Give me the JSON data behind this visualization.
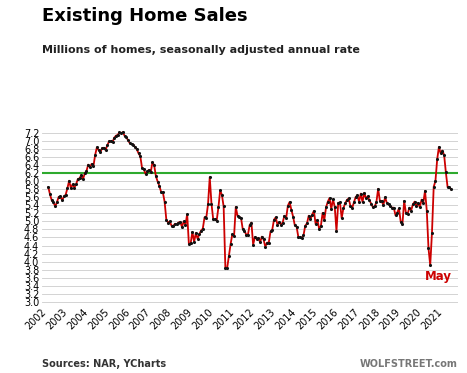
{
  "title": "Existing Home Sales",
  "subtitle": "Millions of homes, seasonally adjusted annual rate",
  "ylabel_values": [
    3.0,
    3.2,
    3.4,
    3.6,
    3.8,
    4.0,
    4.2,
    4.4,
    4.6,
    4.8,
    5.0,
    5.2,
    5.4,
    5.6,
    5.8,
    6.0,
    6.2,
    6.4,
    6.6,
    6.8,
    7.0,
    7.2
  ],
  "ylim": [
    2.9,
    7.35
  ],
  "source_left": "Sources: NAR, YCharts",
  "source_right": "WOLFSTREET.com",
  "annotation": "May",
  "annotation_color": "#cc0000",
  "hline_value": 6.2,
  "hline_color": "#2eaa2e",
  "line_color": "#cc0000",
  "dot_color": "#111111",
  "background_color": "#ffffff",
  "grid_color": "#cccccc",
  "data": [
    [
      2002.0,
      5.85
    ],
    [
      2002.083,
      5.67
    ],
    [
      2002.167,
      5.52
    ],
    [
      2002.25,
      5.47
    ],
    [
      2002.333,
      5.37
    ],
    [
      2002.417,
      5.48
    ],
    [
      2002.5,
      5.61
    ],
    [
      2002.583,
      5.62
    ],
    [
      2002.667,
      5.52
    ],
    [
      2002.75,
      5.62
    ],
    [
      2002.833,
      5.66
    ],
    [
      2002.917,
      5.82
    ],
    [
      2003.0,
      6.01
    ],
    [
      2003.083,
      5.83
    ],
    [
      2003.167,
      5.92
    ],
    [
      2003.25,
      5.84
    ],
    [
      2003.333,
      5.92
    ],
    [
      2003.417,
      6.05
    ],
    [
      2003.5,
      6.07
    ],
    [
      2003.583,
      6.15
    ],
    [
      2003.667,
      6.05
    ],
    [
      2003.75,
      6.19
    ],
    [
      2003.833,
      6.25
    ],
    [
      2003.917,
      6.41
    ],
    [
      2004.0,
      6.35
    ],
    [
      2004.083,
      6.43
    ],
    [
      2004.167,
      6.37
    ],
    [
      2004.25,
      6.65
    ],
    [
      2004.333,
      6.84
    ],
    [
      2004.417,
      6.77
    ],
    [
      2004.5,
      6.72
    ],
    [
      2004.583,
      6.82
    ],
    [
      2004.667,
      6.83
    ],
    [
      2004.75,
      6.77
    ],
    [
      2004.833,
      6.89
    ],
    [
      2004.917,
      6.99
    ],
    [
      2005.0,
      6.99
    ],
    [
      2005.083,
      6.97
    ],
    [
      2005.167,
      7.08
    ],
    [
      2005.25,
      7.13
    ],
    [
      2005.333,
      7.15
    ],
    [
      2005.417,
      7.21
    ],
    [
      2005.5,
      7.19
    ],
    [
      2005.583,
      7.22
    ],
    [
      2005.667,
      7.12
    ],
    [
      2005.75,
      7.09
    ],
    [
      2005.833,
      7.01
    ],
    [
      2005.917,
      6.94
    ],
    [
      2006.0,
      6.92
    ],
    [
      2006.083,
      6.91
    ],
    [
      2006.167,
      6.84
    ],
    [
      2006.25,
      6.79
    ],
    [
      2006.333,
      6.69
    ],
    [
      2006.417,
      6.62
    ],
    [
      2006.5,
      6.33
    ],
    [
      2006.583,
      6.3
    ],
    [
      2006.667,
      6.18
    ],
    [
      2006.75,
      6.24
    ],
    [
      2006.833,
      6.28
    ],
    [
      2006.917,
      6.22
    ],
    [
      2007.0,
      6.47
    ],
    [
      2007.083,
      6.39
    ],
    [
      2007.167,
      6.12
    ],
    [
      2007.25,
      5.99
    ],
    [
      2007.333,
      5.88
    ],
    [
      2007.417,
      5.73
    ],
    [
      2007.5,
      5.72
    ],
    [
      2007.583,
      5.49
    ],
    [
      2007.667,
      5.04
    ],
    [
      2007.75,
      4.97
    ],
    [
      2007.833,
      5.0
    ],
    [
      2007.917,
      4.89
    ],
    [
      2008.0,
      4.89
    ],
    [
      2008.083,
      4.94
    ],
    [
      2008.167,
      4.93
    ],
    [
      2008.25,
      4.97
    ],
    [
      2008.333,
      4.99
    ],
    [
      2008.417,
      4.86
    ],
    [
      2008.5,
      5.0
    ],
    [
      2008.583,
      4.91
    ],
    [
      2008.667,
      5.18
    ],
    [
      2008.75,
      4.43
    ],
    [
      2008.833,
      4.45
    ],
    [
      2008.917,
      4.74
    ],
    [
      2009.0,
      4.49
    ],
    [
      2009.083,
      4.71
    ],
    [
      2009.167,
      4.57
    ],
    [
      2009.25,
      4.68
    ],
    [
      2009.333,
      4.77
    ],
    [
      2009.417,
      4.82
    ],
    [
      2009.5,
      5.1
    ],
    [
      2009.583,
      5.09
    ],
    [
      2009.667,
      5.42
    ],
    [
      2009.75,
      6.1
    ],
    [
      2009.833,
      5.44
    ],
    [
      2009.917,
      5.05
    ],
    [
      2010.0,
      5.05
    ],
    [
      2010.083,
      5.02
    ],
    [
      2010.167,
      5.35
    ],
    [
      2010.25,
      5.77
    ],
    [
      2010.333,
      5.66
    ],
    [
      2010.417,
      5.37
    ],
    [
      2010.5,
      3.84
    ],
    [
      2010.583,
      3.83
    ],
    [
      2010.667,
      4.13
    ],
    [
      2010.75,
      4.43
    ],
    [
      2010.833,
      4.68
    ],
    [
      2010.917,
      4.63
    ],
    [
      2011.0,
      5.36
    ],
    [
      2011.083,
      5.14
    ],
    [
      2011.167,
      5.1
    ],
    [
      2011.25,
      5.09
    ],
    [
      2011.333,
      4.81
    ],
    [
      2011.417,
      4.77
    ],
    [
      2011.5,
      4.67
    ],
    [
      2011.583,
      4.67
    ],
    [
      2011.667,
      4.91
    ],
    [
      2011.75,
      4.97
    ],
    [
      2011.833,
      4.42
    ],
    [
      2011.917,
      4.61
    ],
    [
      2012.0,
      4.57
    ],
    [
      2012.083,
      4.59
    ],
    [
      2012.167,
      4.48
    ],
    [
      2012.25,
      4.62
    ],
    [
      2012.333,
      4.55
    ],
    [
      2012.417,
      4.37
    ],
    [
      2012.5,
      4.47
    ],
    [
      2012.583,
      4.47
    ],
    [
      2012.667,
      4.75
    ],
    [
      2012.75,
      4.79
    ],
    [
      2012.833,
      5.04
    ],
    [
      2012.917,
      5.1
    ],
    [
      2013.0,
      4.92
    ],
    [
      2013.083,
      4.98
    ],
    [
      2013.167,
      4.92
    ],
    [
      2013.25,
      4.97
    ],
    [
      2013.333,
      5.14
    ],
    [
      2013.417,
      5.08
    ],
    [
      2013.5,
      5.39
    ],
    [
      2013.583,
      5.48
    ],
    [
      2013.667,
      5.29
    ],
    [
      2013.75,
      5.12
    ],
    [
      2013.833,
      4.9
    ],
    [
      2013.917,
      4.87
    ],
    [
      2014.0,
      4.62
    ],
    [
      2014.083,
      4.6
    ],
    [
      2014.167,
      4.59
    ],
    [
      2014.25,
      4.65
    ],
    [
      2014.333,
      4.89
    ],
    [
      2014.417,
      4.95
    ],
    [
      2014.5,
      5.14
    ],
    [
      2014.583,
      5.05
    ],
    [
      2014.667,
      5.17
    ],
    [
      2014.75,
      5.26
    ],
    [
      2014.833,
      4.93
    ],
    [
      2014.917,
      5.04
    ],
    [
      2015.0,
      4.82
    ],
    [
      2015.083,
      4.88
    ],
    [
      2015.167,
      5.21
    ],
    [
      2015.25,
      5.04
    ],
    [
      2015.333,
      5.35
    ],
    [
      2015.417,
      5.49
    ],
    [
      2015.5,
      5.58
    ],
    [
      2015.583,
      5.31
    ],
    [
      2015.667,
      5.55
    ],
    [
      2015.75,
      5.36
    ],
    [
      2015.833,
      4.76
    ],
    [
      2015.917,
      5.46
    ],
    [
      2016.0,
      5.47
    ],
    [
      2016.083,
      5.08
    ],
    [
      2016.167,
      5.33
    ],
    [
      2016.25,
      5.45
    ],
    [
      2016.333,
      5.53
    ],
    [
      2016.417,
      5.57
    ],
    [
      2016.5,
      5.39
    ],
    [
      2016.583,
      5.33
    ],
    [
      2016.667,
      5.47
    ],
    [
      2016.75,
      5.6
    ],
    [
      2016.833,
      5.65
    ],
    [
      2016.917,
      5.49
    ],
    [
      2017.0,
      5.69
    ],
    [
      2017.083,
      5.48
    ],
    [
      2017.167,
      5.71
    ],
    [
      2017.25,
      5.57
    ],
    [
      2017.333,
      5.62
    ],
    [
      2017.417,
      5.52
    ],
    [
      2017.5,
      5.44
    ],
    [
      2017.583,
      5.35
    ],
    [
      2017.667,
      5.37
    ],
    [
      2017.75,
      5.48
    ],
    [
      2017.833,
      5.81
    ],
    [
      2017.917,
      5.51
    ],
    [
      2018.0,
      5.51
    ],
    [
      2018.083,
      5.4
    ],
    [
      2018.167,
      5.6
    ],
    [
      2018.25,
      5.46
    ],
    [
      2018.333,
      5.43
    ],
    [
      2018.417,
      5.38
    ],
    [
      2018.5,
      5.34
    ],
    [
      2018.583,
      5.34
    ],
    [
      2018.667,
      5.15
    ],
    [
      2018.75,
      5.22
    ],
    [
      2018.833,
      5.32
    ],
    [
      2018.917,
      4.99
    ],
    [
      2019.0,
      4.94
    ],
    [
      2019.083,
      5.51
    ],
    [
      2019.167,
      5.21
    ],
    [
      2019.25,
      5.19
    ],
    [
      2019.333,
      5.34
    ],
    [
      2019.417,
      5.27
    ],
    [
      2019.5,
      5.42
    ],
    [
      2019.583,
      5.49
    ],
    [
      2019.667,
      5.38
    ],
    [
      2019.75,
      5.46
    ],
    [
      2019.833,
      5.35
    ],
    [
      2019.917,
      5.54
    ],
    [
      2020.0,
      5.46
    ],
    [
      2020.083,
      5.76
    ],
    [
      2020.167,
      5.27
    ],
    [
      2020.25,
      4.33
    ],
    [
      2020.333,
      3.91
    ],
    [
      2020.417,
      4.72
    ],
    [
      2020.5,
      5.86
    ],
    [
      2020.583,
      6.0
    ],
    [
      2020.667,
      6.54
    ],
    [
      2020.75,
      6.85
    ],
    [
      2020.833,
      6.69
    ],
    [
      2020.917,
      6.76
    ],
    [
      2021.0,
      6.65
    ],
    [
      2021.083,
      6.22
    ],
    [
      2021.167,
      5.85
    ],
    [
      2021.25,
      5.85
    ],
    [
      2021.333,
      5.8
    ]
  ]
}
